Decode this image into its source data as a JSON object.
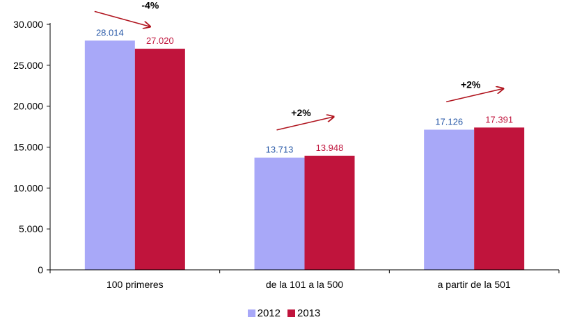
{
  "chart_data": {
    "type": "bar",
    "categories": [
      "100 primeres",
      "de la 101 a la 500",
      "a partir de la 501"
    ],
    "series": [
      {
        "name": "2012",
        "values": [
          28014,
          13713,
          17126
        ],
        "labels": [
          "28.014",
          "13.713",
          "17.126"
        ],
        "color": "#a8a8f8",
        "label_color": "#2a5aa8"
      },
      {
        "name": "2013",
        "values": [
          27020,
          13948,
          17391
        ],
        "labels": [
          "27.020",
          "13.948",
          "17.391"
        ],
        "color": "#c0143c",
        "label_color": "#c0143c"
      }
    ],
    "ylim": [
      0,
      30000
    ],
    "yticks": [
      0,
      5000,
      10000,
      15000,
      20000,
      25000,
      30000
    ],
    "ytick_labels": [
      "0",
      "5.000",
      "10.000",
      "15.000",
      "20.000",
      "25.000",
      "30.000"
    ],
    "annotations": [
      "-4%",
      "+2%",
      "+2%"
    ],
    "arrow_color": "#b0141e",
    "legend_position": "bottom",
    "grid": false
  }
}
